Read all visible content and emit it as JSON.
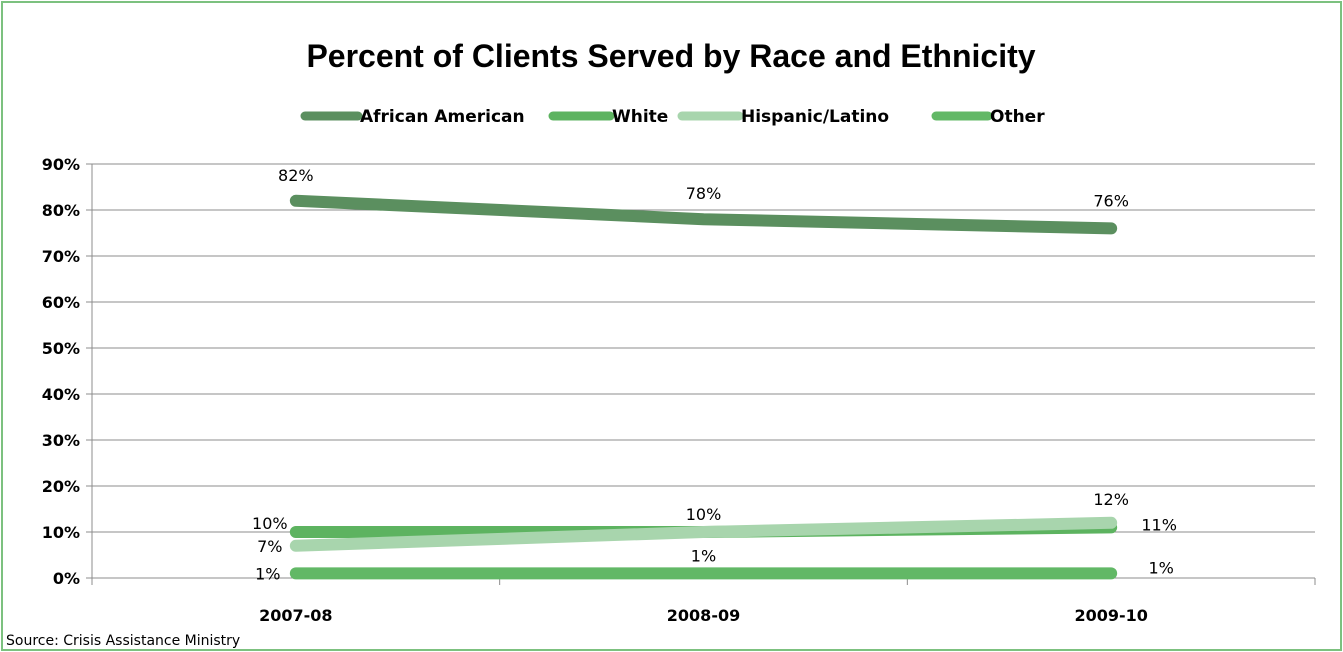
{
  "chart_data": {
    "type": "line",
    "title": "Percent of Clients Served by Race and Ethnicity",
    "categories": [
      "2007-08",
      "2008-09",
      "2009-10"
    ],
    "ylim": [
      0,
      90
    ],
    "yticks": [
      "0%",
      "10%",
      "20%",
      "30%",
      "40%",
      "50%",
      "60%",
      "70%",
      "80%",
      "90%"
    ],
    "grid": true,
    "legend_position": "top",
    "series": [
      {
        "name": "African American",
        "values": [
          82,
          78,
          76
        ],
        "labels": [
          "82%",
          "78%",
          "76%"
        ],
        "color": "#5b8f5f"
      },
      {
        "name": "White",
        "values": [
          10,
          10,
          11
        ],
        "labels": [
          "10%",
          "",
          "11%"
        ],
        "color": "#5db360"
      },
      {
        "name": "Hispanic/Latino",
        "values": [
          7,
          10,
          12
        ],
        "labels": [
          "7%",
          "10%",
          "12%"
        ],
        "color": "#a8d5ad"
      },
      {
        "name": "Other",
        "values": [
          1,
          1,
          1
        ],
        "labels": [
          "1%",
          "1%",
          "1%"
        ],
        "color": "#62b866"
      }
    ],
    "source": "Source: Crisis Assistance Ministry"
  }
}
